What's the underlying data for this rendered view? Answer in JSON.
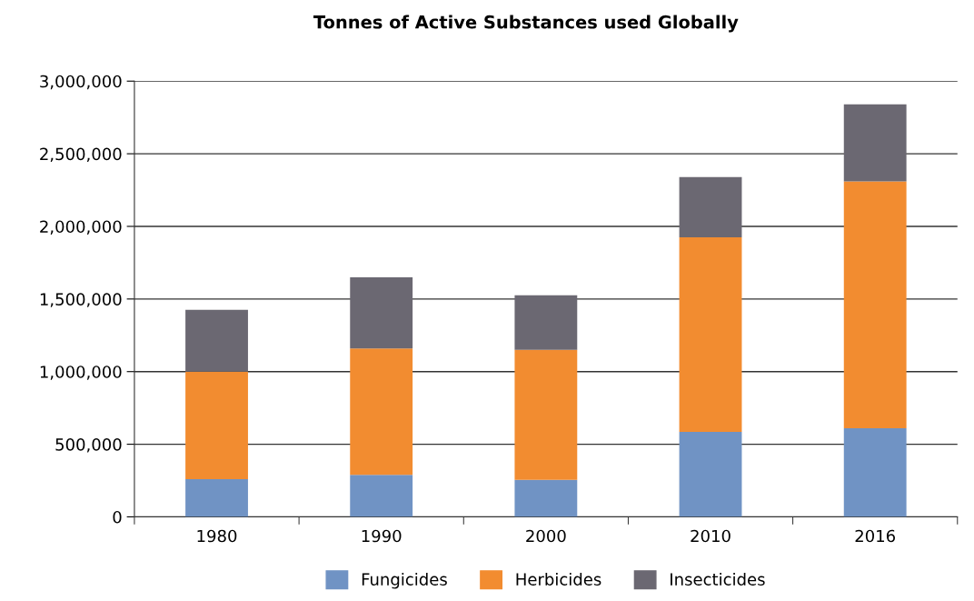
{
  "chart_data": {
    "type": "bar",
    "title": "Tonnes of Active Substances used Globally",
    "stacked": true,
    "categories": [
      "1980",
      "1990",
      "2000",
      "2010",
      "2016"
    ],
    "series": [
      {
        "name": "Fungicides",
        "color": "#7093c4",
        "values": [
          260000,
          290000,
          255000,
          585000,
          610000
        ]
      },
      {
        "name": "Herbicides",
        "color": "#f28c30",
        "values": [
          740000,
          870000,
          895000,
          1340000,
          1700000
        ]
      },
      {
        "name": "Insecticides",
        "color": "#6b6872",
        "values": [
          425000,
          490000,
          375000,
          415000,
          530000
        ]
      }
    ],
    "ylim": [
      0,
      3000000
    ],
    "yticks": [
      {
        "value": 0,
        "label": "0"
      },
      {
        "value": 500000,
        "label": "500,000"
      },
      {
        "value": 1000000,
        "label": "1,000,000"
      },
      {
        "value": 1500000,
        "label": "1,500,000"
      },
      {
        "value": 2000000,
        "label": "2,000,000"
      },
      {
        "value": 2500000,
        "label": "2,500,000"
      },
      {
        "value": 3000000,
        "label": "3,000,000"
      }
    ],
    "grid": "y",
    "legend": "bottom"
  }
}
